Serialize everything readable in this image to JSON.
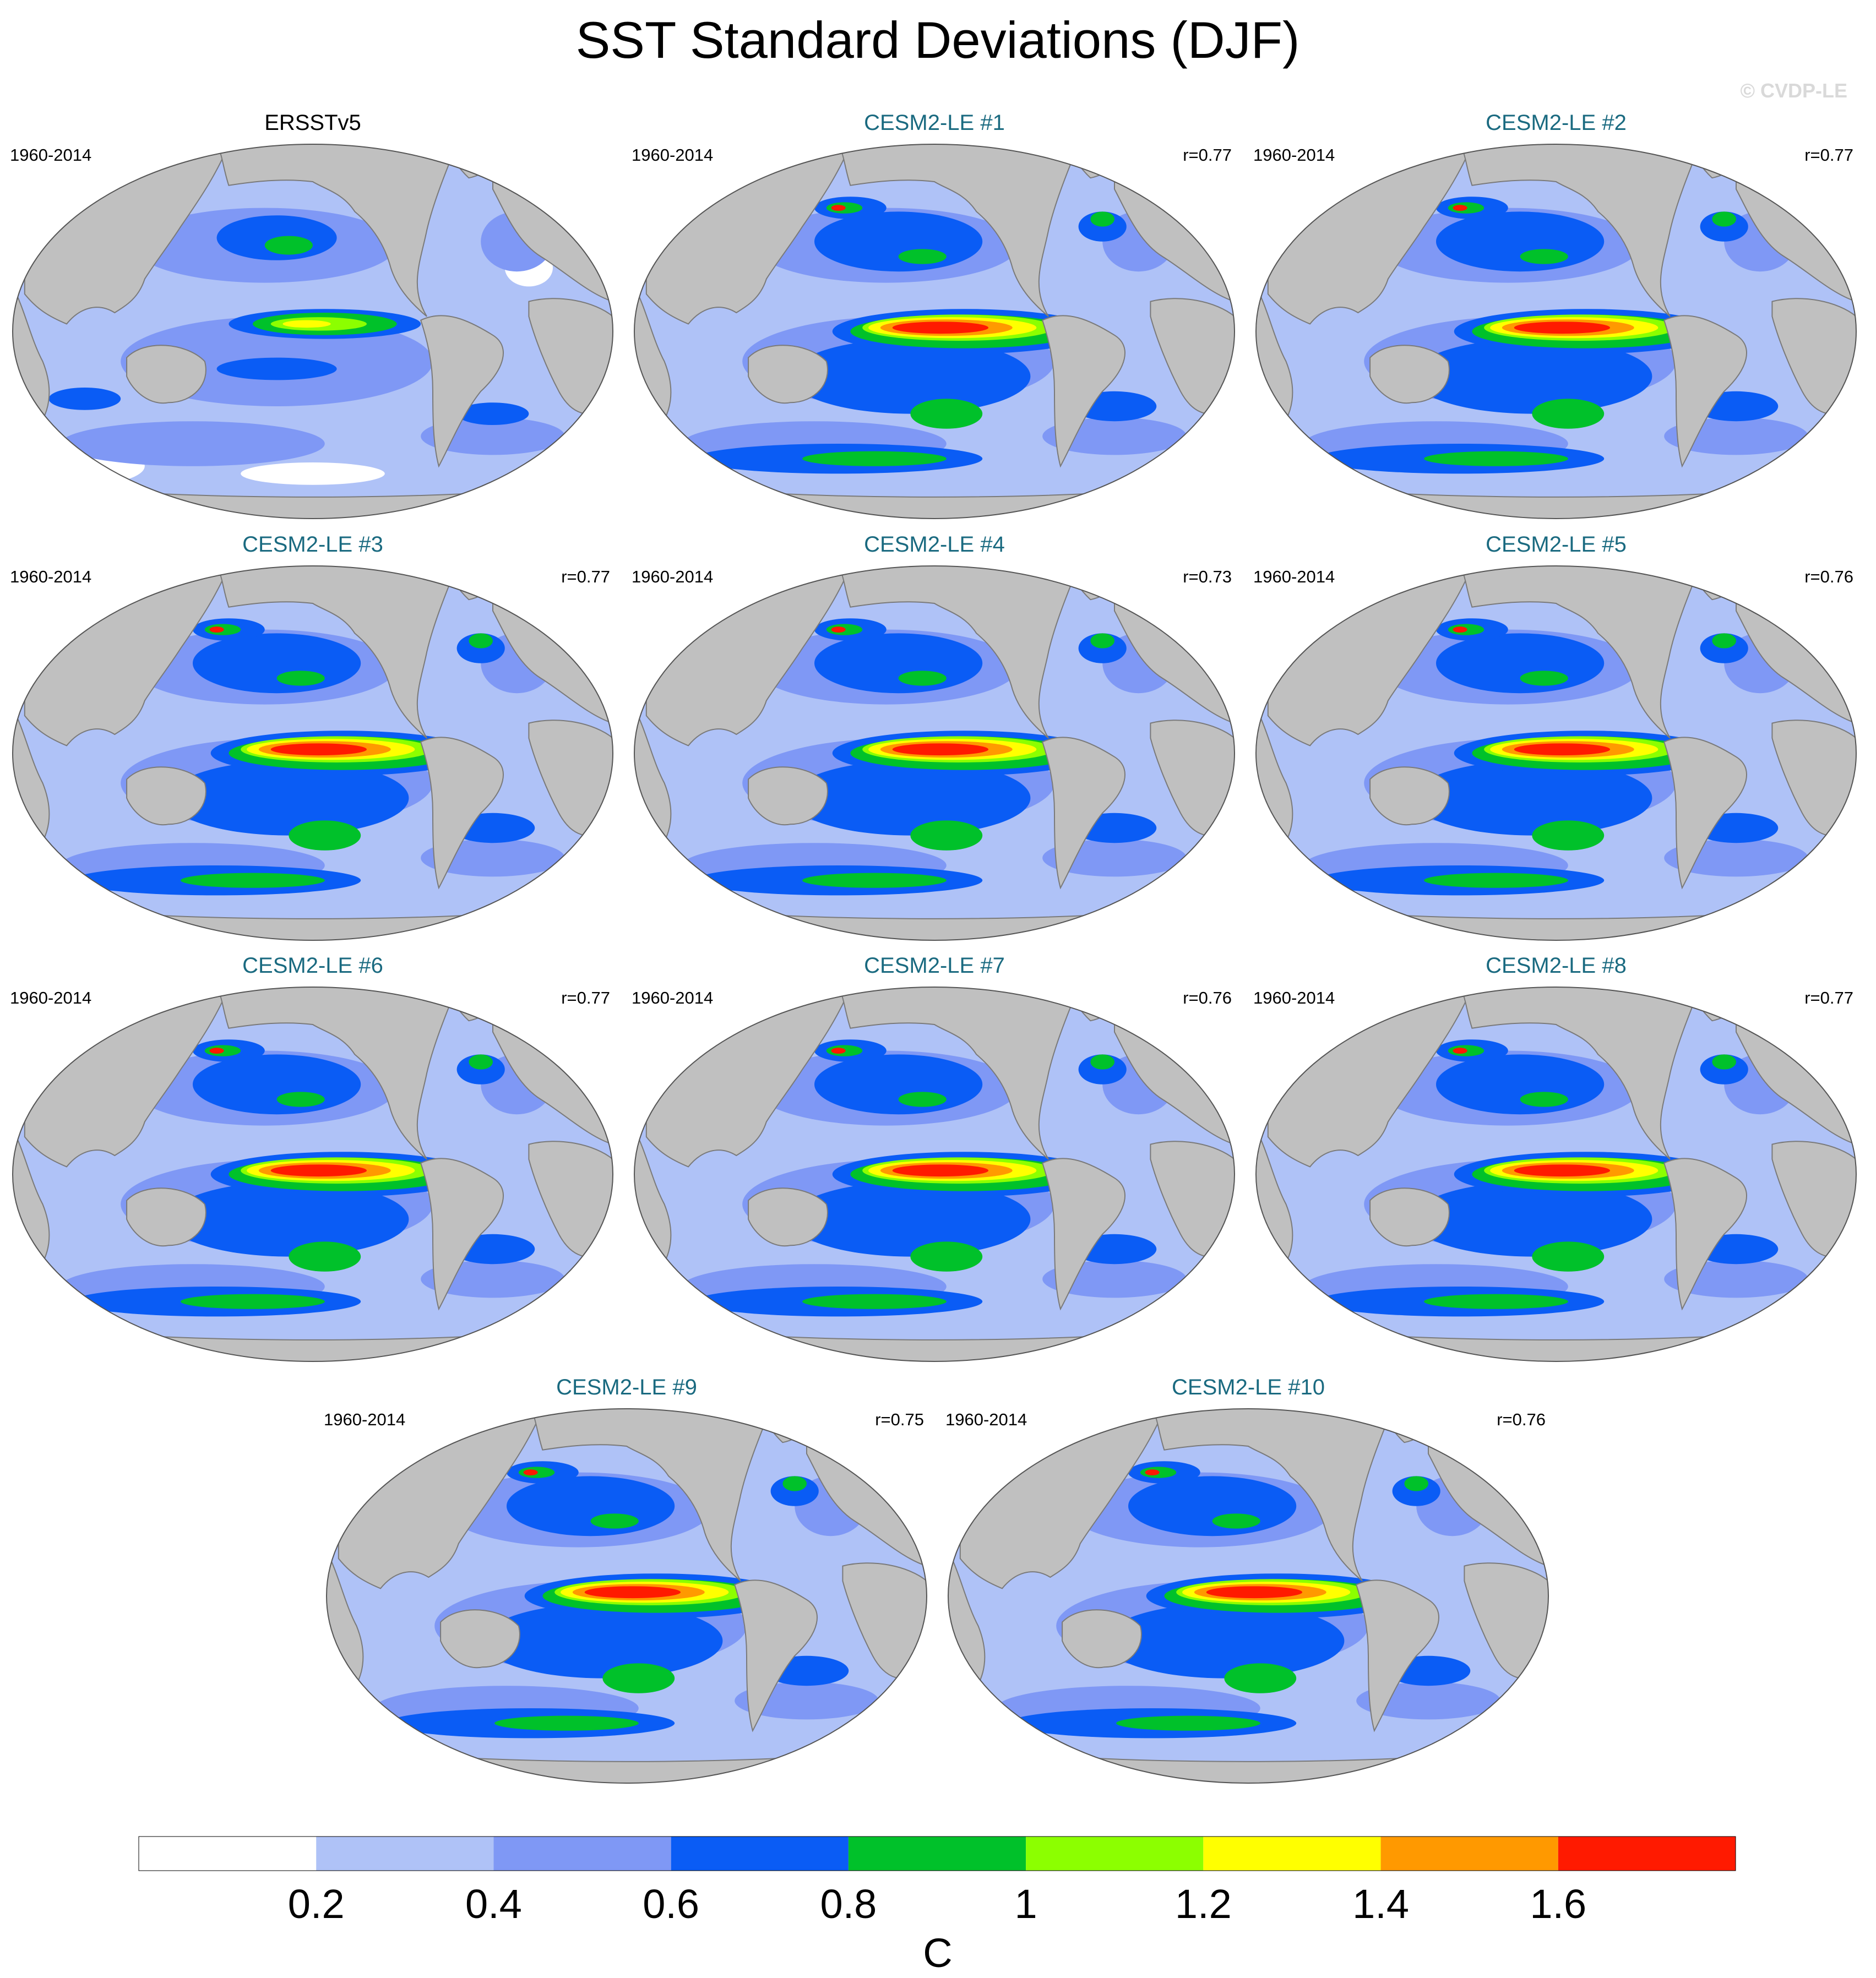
{
  "figure": {
    "title": "SST Standard Deviations (DJF)",
    "watermark": "© CVDP-LE"
  },
  "colors": {
    "title_obs": "#000000",
    "title_model": "#1a6a80",
    "land": "#c0c0c0",
    "ocean_base": "#afc2f7"
  },
  "panels": [
    {
      "title": "ERSSTv5",
      "left": "1960-2014",
      "right": "",
      "kind": "obs"
    },
    {
      "title": "CESM2-LE #1",
      "left": "1960-2014",
      "right": "r=0.77",
      "kind": "model"
    },
    {
      "title": "CESM2-LE #2",
      "left": "1960-2014",
      "right": "r=0.77",
      "kind": "model"
    },
    {
      "title": "CESM2-LE #3",
      "left": "1960-2014",
      "right": "r=0.77",
      "kind": "model"
    },
    {
      "title": "CESM2-LE #4",
      "left": "1960-2014",
      "right": "r=0.73",
      "kind": "model"
    },
    {
      "title": "CESM2-LE #5",
      "left": "1960-2014",
      "right": "r=0.76",
      "kind": "model"
    },
    {
      "title": "CESM2-LE #6",
      "left": "1960-2014",
      "right": "r=0.77",
      "kind": "model"
    },
    {
      "title": "CESM2-LE #7",
      "left": "1960-2014",
      "right": "r=0.76",
      "kind": "model"
    },
    {
      "title": "CESM2-LE #8",
      "left": "1960-2014",
      "right": "r=0.77",
      "kind": "model"
    },
    {
      "title": "CESM2-LE #9",
      "left": "1960-2014",
      "right": "r=0.75",
      "kind": "model"
    },
    {
      "title": "CESM2-LE #10",
      "left": "1960-2014",
      "right": "r=0.76",
      "kind": "model"
    }
  ],
  "colorbar": {
    "unit": "C",
    "labels": [
      "0.2",
      "0.4",
      "0.6",
      "0.8",
      "1",
      "1.2",
      "1.4",
      "1.6"
    ],
    "colors": [
      "#ffffff",
      "#afc2f7",
      "#7f98f5",
      "#0a5cf5",
      "#00c12a",
      "#8cff00",
      "#ffff00",
      "#ff9900",
      "#ff1a00"
    ]
  }
}
